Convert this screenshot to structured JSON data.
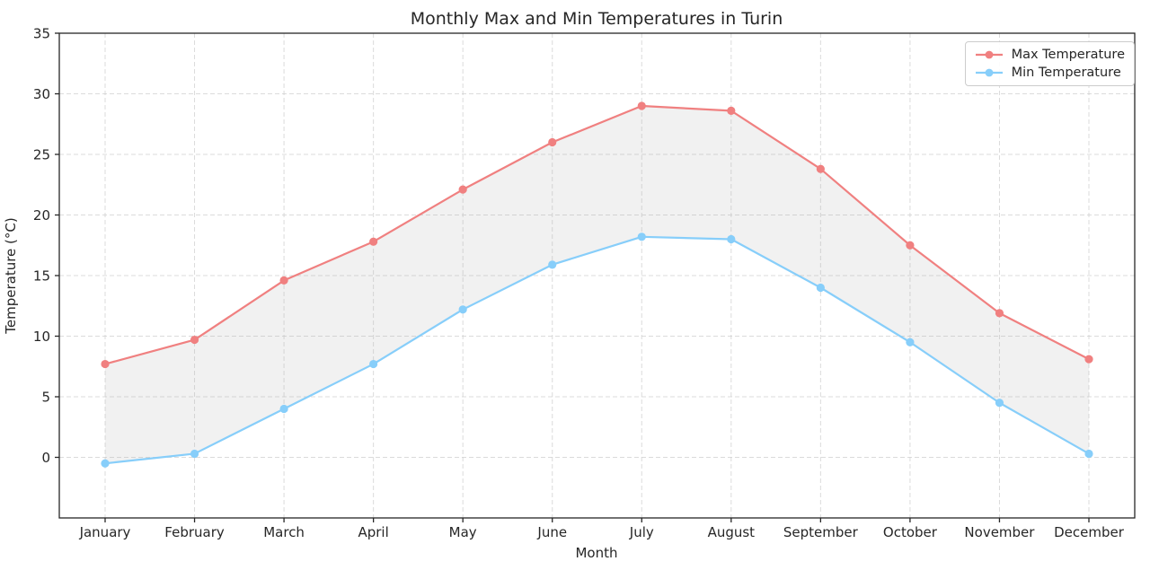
{
  "title": "Monthly Max and Min Temperatures in Turin",
  "chart_data": {
    "type": "line",
    "x": [
      "January",
      "February",
      "March",
      "April",
      "May",
      "June",
      "July",
      "August",
      "September",
      "October",
      "November",
      "December"
    ],
    "series": [
      {
        "name": "Max Temperature",
        "color": "#F08080",
        "values": [
          7.7,
          9.7,
          14.6,
          17.8,
          22.1,
          26.0,
          29.0,
          28.6,
          23.8,
          17.5,
          11.9,
          8.1
        ]
      },
      {
        "name": "Min Temperature",
        "color": "#87CEFA",
        "values": [
          -0.5,
          0.3,
          4.0,
          7.7,
          12.2,
          15.9,
          18.2,
          18.0,
          14.0,
          9.5,
          4.5,
          0.3
        ]
      }
    ],
    "fill_between": {
      "color": "#b4b4b4",
      "opacity": 0.18
    },
    "xlabel": "Month",
    "ylabel": "Temperature (°C)",
    "ylim": [
      -5,
      35
    ],
    "yticks": [
      0,
      5,
      10,
      15,
      20,
      25,
      30,
      35
    ],
    "grid": true,
    "grid_color": "#cfcfcf",
    "axis_color": "#262626",
    "legend_position": "upper right"
  }
}
